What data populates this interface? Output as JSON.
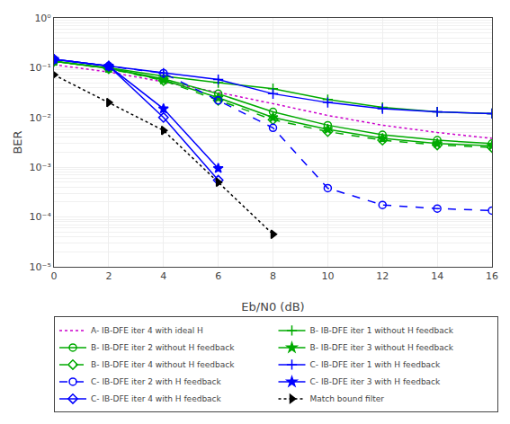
{
  "chart_data": {
    "type": "line",
    "x_label": "Eb/N0 (dB)",
    "y_label": "BER",
    "log": "y",
    "grid": true,
    "legend": "lower left",
    "x": [
      0,
      2,
      4,
      6,
      8,
      10,
      12,
      14,
      16
    ],
    "xlim": [
      0,
      16
    ],
    "xticks": [
      0,
      2,
      4,
      6,
      8,
      10,
      12,
      14,
      16
    ],
    "ylim": [
      1e-05,
      1
    ],
    "yticks": [
      {
        "value": 1e-05,
        "label": "10⁻⁵"
      },
      {
        "value": 0.0001,
        "label": "10⁻⁴"
      },
      {
        "value": 0.001,
        "label": "10⁻³"
      },
      {
        "value": 0.01,
        "label": "10⁻²"
      },
      {
        "value": 0.1,
        "label": "10⁻¹"
      },
      {
        "value": 1,
        "label": "10⁰"
      }
    ],
    "series": [
      {
        "name": "A- IB-DFE iter 4 with ideal H",
        "color": "#cc00cc",
        "line_style": "dotted",
        "values": [
          0.115,
          0.082,
          0.052,
          0.032,
          0.019,
          0.011,
          0.007,
          0.005,
          0.0038
        ]
      },
      {
        "name": "B- IB-DFE iter 1 without H feedback",
        "color": "#00aa00",
        "line_style": "solid",
        "marker": "cross-thin-open",
        "values": [
          0.135,
          0.1,
          0.068,
          0.05,
          0.038,
          0.023,
          0.016,
          0.013,
          0.012
        ]
      },
      {
        "name": "B- IB-DFE iter 2 without H feedback",
        "color": "#00aa00",
        "line_style": "solid",
        "marker": "circle-open",
        "values": [
          0.135,
          0.098,
          0.06,
          0.03,
          0.013,
          0.007,
          0.0045,
          0.0035,
          0.003
        ]
      },
      {
        "name": "B- IB-DFE iter 3 without H feedback",
        "color": "#00aa00",
        "line_style": "solid",
        "marker": "star",
        "values": [
          0.135,
          0.097,
          0.057,
          0.025,
          0.01,
          0.0058,
          0.0038,
          0.003,
          0.0027
        ]
      },
      {
        "name": "B- IB-DFE iter 4 without H feedback",
        "color": "#00aa00",
        "line_style": "dashed",
        "marker": "diamond-open",
        "values": [
          0.135,
          0.096,
          0.055,
          0.022,
          0.009,
          0.0052,
          0.0035,
          0.0028,
          0.0025
        ]
      },
      {
        "name": "C- IB-DFE iter 1 with H feedback",
        "color": "#0000ff",
        "line_style": "solid",
        "marker": "cross-thin-open",
        "values": [
          0.148,
          0.108,
          0.078,
          0.058,
          0.03,
          0.02,
          0.015,
          0.013,
          0.012
        ]
      },
      {
        "name": "C- IB-DFE iter 2 with H feedback",
        "color": "#0000ff",
        "line_style": "dashed",
        "marker": "circle-open",
        "values": [
          0.148,
          0.108,
          0.078,
          0.022,
          0.0062,
          0.00038,
          0.000175,
          0.000148,
          0.000135
        ]
      },
      {
        "name": "C- IB-DFE iter 3 with H feedback",
        "color": "#0000ff",
        "line_style": "solid",
        "marker": "star",
        "values": [
          0.148,
          0.108,
          0.015,
          0.00095,
          null,
          null,
          null,
          null,
          null
        ]
      },
      {
        "name": "C- IB-DFE iter 4 with H feedback",
        "color": "#0000ff",
        "line_style": "solid",
        "marker": "diamond-open",
        "values": [
          0.148,
          0.108,
          0.01,
          0.00055,
          null,
          null,
          null,
          null,
          null
        ]
      },
      {
        "name": "Match bound filter",
        "color": "#000000",
        "line_style": "dotted",
        "marker": "triangle-right",
        "values": [
          0.072,
          0.02,
          0.0055,
          0.0005,
          4.5e-05,
          null,
          null,
          null,
          null
        ]
      }
    ]
  }
}
